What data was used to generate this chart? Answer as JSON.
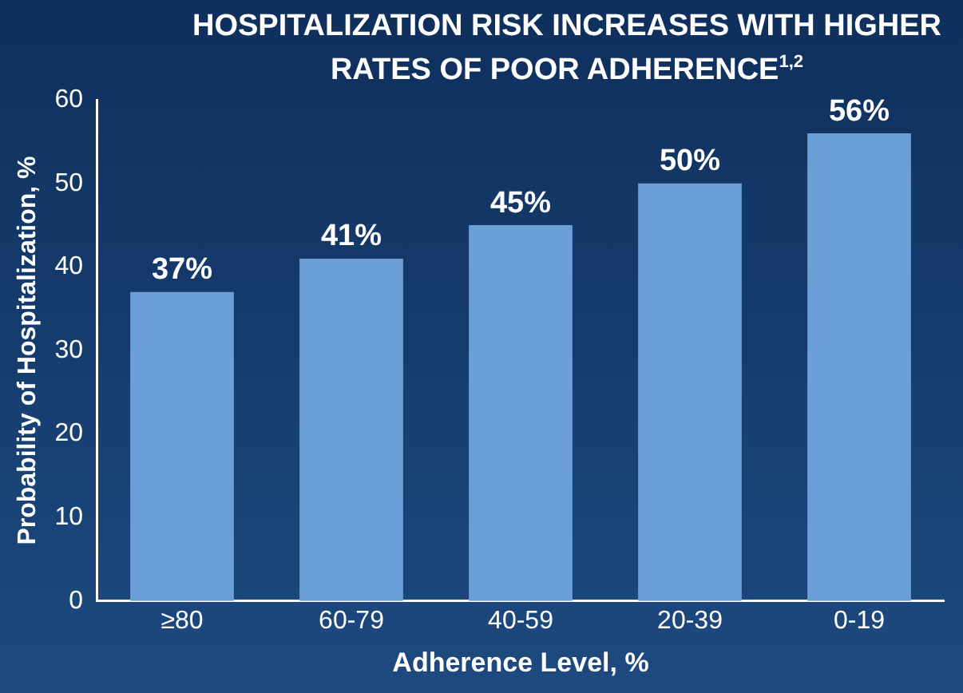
{
  "chart_data": {
    "type": "bar",
    "title": "HOSPITALIZATION RISK INCREASES WITH HIGHER RATES OF POOR ADHERENCE$^{1,2}$",
    "xlabel": "Adherence Level, %",
    "ylabel": "Probability of Hospitalization, %",
    "categories": [
      "≥80",
      "60-79",
      "40-59",
      "20-39",
      "0-19"
    ],
    "values": [
      37,
      41,
      45,
      50,
      56
    ],
    "value_labels": [
      "37%",
      "41%",
      "45%",
      "50%",
      "56%"
    ],
    "color": "#6a9fd8",
    "ylim": [
      0,
      60
    ],
    "yticks": [
      0,
      10,
      20,
      30,
      40,
      50,
      60
    ],
    "grid": false,
    "legend": false
  }
}
